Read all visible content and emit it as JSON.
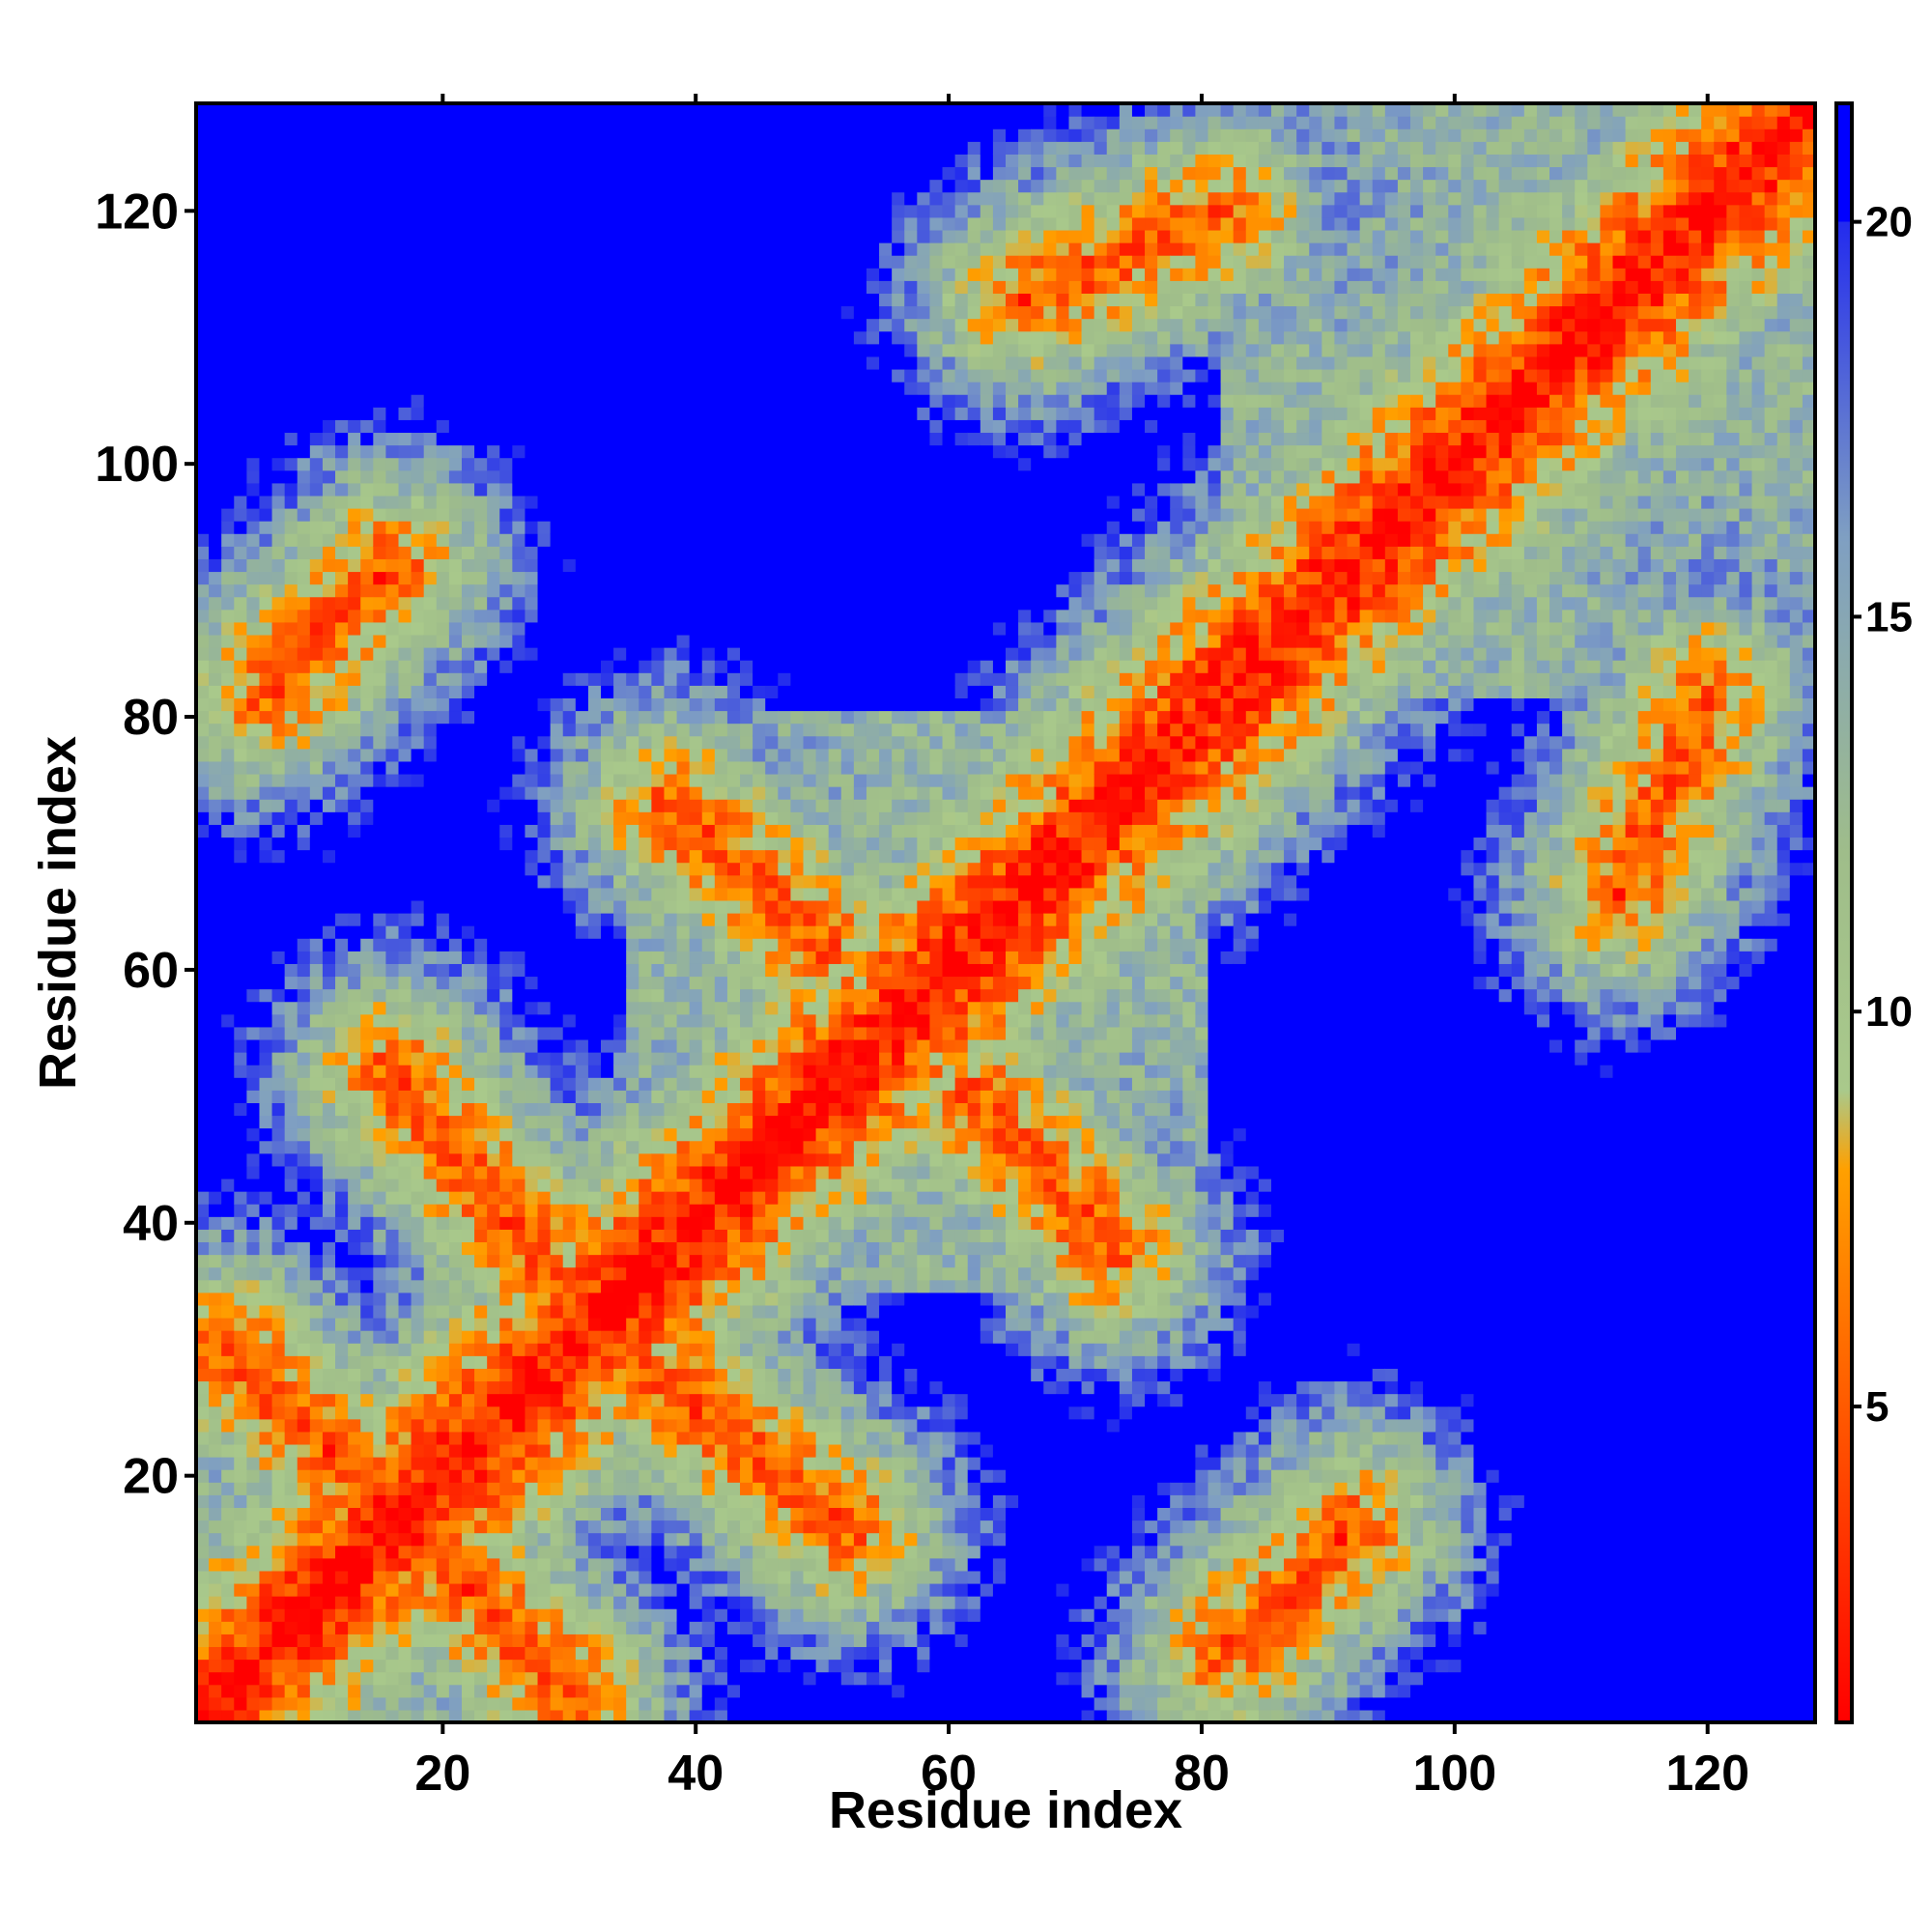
{
  "chart_data": {
    "type": "heatmap",
    "title": "",
    "xlabel": "Residue index",
    "ylabel": "Residue index",
    "n_residues": 128,
    "xlim": [
      1,
      128
    ],
    "ylim": [
      1,
      128
    ],
    "x_ticks": [
      "20",
      "40",
      "60",
      "80",
      "100",
      "120"
    ],
    "y_ticks": [
      "20",
      "40",
      "60",
      "80",
      "100",
      "120"
    ],
    "x_tick_values": [
      20,
      40,
      60,
      80,
      100,
      120
    ],
    "y_tick_values": [
      20,
      40,
      60,
      80,
      100,
      120
    ],
    "colorbar": {
      "range": [
        1,
        21.5
      ],
      "ticks": [
        "5",
        "10",
        "15",
        "20"
      ],
      "tick_values": [
        5,
        10,
        15,
        20
      ],
      "stops": [
        {
          "value": 1,
          "color": "#ff0000"
        },
        {
          "value": 5,
          "color": "#ff5a00"
        },
        {
          "value": 8,
          "color": "#ffa000"
        },
        {
          "value": 9,
          "color": "#a9c98b"
        },
        {
          "value": 12,
          "color": "#9fbd8a"
        },
        {
          "value": 16,
          "color": "#7f9fc2"
        },
        {
          "value": 21.5,
          "color": "#0000ff"
        }
      ],
      "saturated_color": "#0000ff",
      "saturated_above": 20
    },
    "contact_segments": [
      {
        "name": "diagonal",
        "from": [
          1,
          1
        ],
        "to": [
          128,
          128
        ]
      },
      {
        "name": "antiparallel-hairpin-1",
        "from": [
          3,
          30
        ],
        "to": [
          28,
          5
        ]
      },
      {
        "name": "antiparallel-hairpin-2",
        "from": [
          16,
          52
        ],
        "to": [
          28,
          37
        ]
      },
      {
        "name": "antiparallel-hairpin-3",
        "from": [
          35,
          27
        ],
        "to": [
          52,
          16
        ]
      },
      {
        "name": "parallel-band-upper-left",
        "from": [
          6,
          82
        ],
        "to": [
          16,
          92
        ]
      },
      {
        "name": "parallel-band-lower-right",
        "from": [
          82,
          6
        ],
        "to": [
          92,
          16
        ]
      },
      {
        "name": "helix-pair-1",
        "from": [
          38,
          73
        ],
        "to": [
          50,
          62
        ]
      },
      {
        "name": "helix-pair-2",
        "from": [
          62,
          48
        ],
        "to": [
          74,
          38
        ]
      },
      {
        "name": "helix-pair-3",
        "from": [
          113,
          66
        ],
        "to": [
          120,
          82
        ]
      },
      {
        "name": "helix-pair-4",
        "from": [
          66,
          113
        ],
        "to": [
          82,
          120
        ]
      }
    ],
    "domain_blocks": [
      {
        "name": "block-n-terminal",
        "range": [
          1,
          30
        ]
      },
      {
        "name": "block-middle",
        "range": [
          35,
          80
        ]
      },
      {
        "name": "block-c-terminal",
        "range": [
          82,
          128
        ]
      }
    ]
  }
}
